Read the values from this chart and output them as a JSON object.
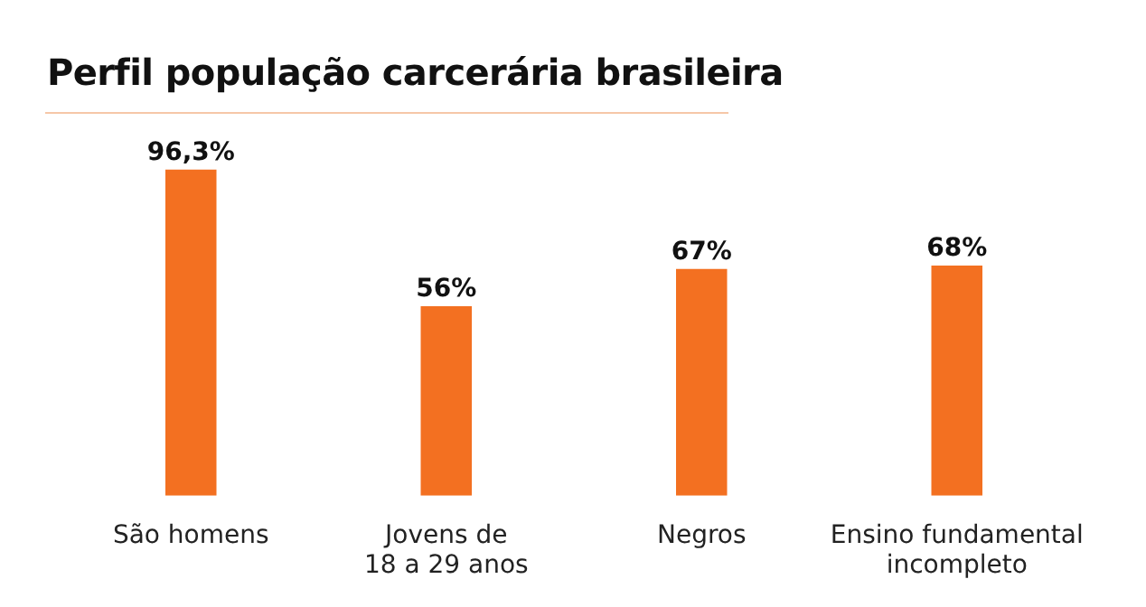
{
  "chart_data": {
    "type": "bar",
    "title": "Perfil população carcerária brasileira",
    "categories": [
      "São homens",
      "Jovens de 18 a 29 anos",
      "Negros",
      "Ensino fundamental incompleto"
    ],
    "values": [
      96.3,
      56,
      67,
      68
    ],
    "value_labels": [
      "96,3%",
      "56%",
      "67%",
      "68%"
    ],
    "color": "#f37021",
    "grid": false,
    "legend": false
  }
}
